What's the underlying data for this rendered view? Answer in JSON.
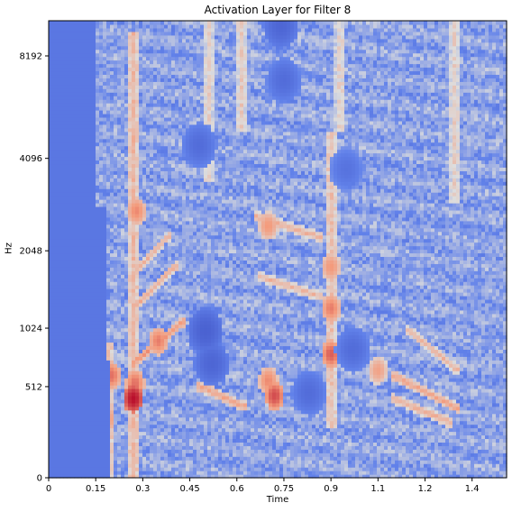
{
  "chart_data": {
    "type": "heatmap",
    "title": "Activation Layer for Filter 8",
    "xlabel": "Time",
    "ylabel": "Hz",
    "xlim": [
      0,
      1.46
    ],
    "x_ticks": [
      "0",
      "0.15",
      "0.3",
      "0.45",
      "0.6",
      "0.75",
      "0.9",
      "1.1",
      "1.2",
      "1.4"
    ],
    "x_tick_values": [
      0,
      0.15,
      0.3,
      0.45,
      0.6,
      0.75,
      0.9,
      1.05,
      1.2,
      1.35
    ],
    "y_scale": "mel",
    "y_ticks": [
      "0",
      "512",
      "1024",
      "2048",
      "4096",
      "8192"
    ],
    "y_tick_values": [
      0,
      512,
      1024,
      2048,
      4096,
      8192
    ],
    "colormap": "coolwarm",
    "colors": {
      "low": "#3b4cc0",
      "mid": "#dddddd",
      "high": "#b40426"
    },
    "grid": false,
    "silent_region": {
      "x_end": 0.2,
      "approx_value": 0.2
    },
    "features": [
      {
        "kind": "vertical_band",
        "x": 0.185,
        "y": [
          0,
          900
        ],
        "value": 0.72
      },
      {
        "kind": "vertical_band",
        "x": 0.27,
        "y": [
          0,
          9500
        ],
        "value": 0.7
      },
      {
        "kind": "vertical_band",
        "x": 0.9,
        "y": [
          250,
          5000
        ],
        "value": 0.68
      },
      {
        "kind": "vertical_band",
        "x": 0.51,
        "y": [
          3500,
          11025
        ],
        "value": 0.62
      },
      {
        "kind": "vertical_band",
        "x": 0.615,
        "y": [
          5000,
          11025
        ],
        "value": 0.63
      },
      {
        "kind": "vertical_band",
        "x": 0.93,
        "y": [
          5000,
          11025
        ],
        "value": 0.62
      },
      {
        "kind": "vertical_band",
        "x": 1.295,
        "y": [
          3000,
          11025
        ],
        "value": 0.62
      },
      {
        "kind": "hotspot",
        "x": 0.27,
        "hz": 430,
        "value": 0.98
      },
      {
        "kind": "hotspot",
        "x": 0.275,
        "hz": 540,
        "value": 0.82
      },
      {
        "kind": "hotspot",
        "x": 0.72,
        "hz": 450,
        "value": 0.88
      },
      {
        "kind": "hotspot",
        "x": 0.7,
        "hz": 560,
        "value": 0.78
      },
      {
        "kind": "hotspot",
        "x": 0.9,
        "hz": 780,
        "value": 0.85
      },
      {
        "kind": "hotspot",
        "x": 0.9,
        "hz": 1250,
        "value": 0.8
      },
      {
        "kind": "hotspot",
        "x": 0.9,
        "hz": 1800,
        "value": 0.75
      },
      {
        "kind": "hotspot",
        "x": 0.2,
        "hz": 600,
        "value": 0.82
      },
      {
        "kind": "hotspot",
        "x": 0.18,
        "hz": 300,
        "value": 0.8
      },
      {
        "kind": "hotspot",
        "x": 0.35,
        "hz": 900,
        "value": 0.8
      },
      {
        "kind": "hotspot",
        "x": 0.28,
        "hz": 2800,
        "value": 0.78
      },
      {
        "kind": "hotspot",
        "x": 0.7,
        "hz": 2500,
        "value": 0.75
      },
      {
        "kind": "hotspot",
        "x": 1.05,
        "hz": 640,
        "value": 0.72
      },
      {
        "kind": "diagonal",
        "from": [
          0.27,
          700
        ],
        "to": [
          0.43,
          1100
        ],
        "value": 0.8
      },
      {
        "kind": "diagonal",
        "from": [
          0.27,
          1250
        ],
        "to": [
          0.4,
          1800
        ],
        "value": 0.74
      },
      {
        "kind": "diagonal",
        "from": [
          0.27,
          1700
        ],
        "to": [
          0.38,
          2300
        ],
        "value": 0.72
      },
      {
        "kind": "diagonal",
        "from": [
          0.48,
          520
        ],
        "to": [
          0.62,
          380
        ],
        "value": 0.76
      },
      {
        "kind": "diagonal",
        "from": [
          0.66,
          2700
        ],
        "to": [
          0.86,
          2300
        ],
        "value": 0.72
      },
      {
        "kind": "diagonal",
        "from": [
          0.68,
          1650
        ],
        "to": [
          0.86,
          1400
        ],
        "value": 0.7
      },
      {
        "kind": "diagonal",
        "from": [
          1.1,
          600
        ],
        "to": [
          1.3,
          370
        ],
        "value": 0.76
      },
      {
        "kind": "diagonal",
        "from": [
          1.1,
          430
        ],
        "to": [
          1.28,
          280
        ],
        "value": 0.72
      },
      {
        "kind": "diagonal",
        "from": [
          1.15,
          1000
        ],
        "to": [
          1.3,
          650
        ],
        "value": 0.7
      },
      {
        "kind": "cold_spot",
        "x": 0.5,
        "hz": 1000,
        "value": 0.1
      },
      {
        "kind": "cold_spot",
        "x": 0.52,
        "hz": 700,
        "value": 0.12
      },
      {
        "kind": "cold_spot",
        "x": 0.48,
        "hz": 4500,
        "value": 0.15
      },
      {
        "kind": "cold_spot",
        "x": 0.74,
        "hz": 10000,
        "value": 0.12
      },
      {
        "kind": "cold_spot",
        "x": 0.75,
        "hz": 7000,
        "value": 0.15
      },
      {
        "kind": "cold_spot",
        "x": 0.97,
        "hz": 820,
        "value": 0.15
      },
      {
        "kind": "cold_spot",
        "x": 0.83,
        "hz": 470,
        "value": 0.15
      },
      {
        "kind": "cold_spot",
        "x": 0.95,
        "hz": 3800,
        "value": 0.18
      }
    ]
  }
}
